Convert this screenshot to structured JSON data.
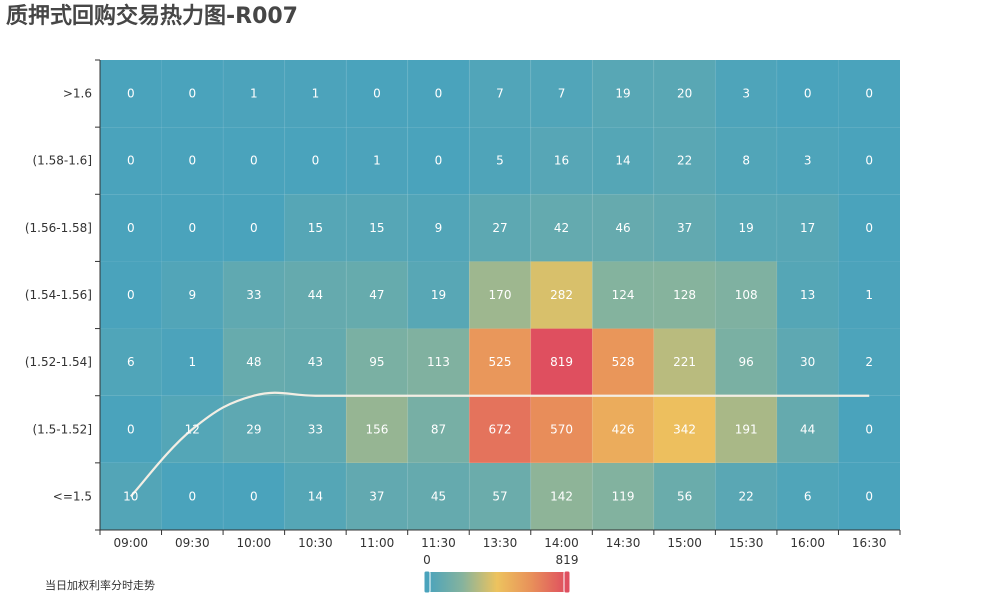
{
  "page": {
    "title": "质押式回购交易热力图-R007"
  },
  "legend": {
    "trend_label": "当日加权利率分时走势",
    "visual_map_min_label": "0",
    "visual_map_max_label": "819"
  },
  "chart_data": {
    "type": "heatmap",
    "title": "质押式回购交易热力图-R007",
    "x_categories": [
      "09:00",
      "09:30",
      "10:00",
      "10:30",
      "11:00",
      "11:30",
      "13:30",
      "14:00",
      "14:30",
      "15:00",
      "15:30",
      "16:00",
      "16:30"
    ],
    "y_categories": [
      "<=1.5",
      "(1.5-1.52]",
      "(1.52-1.54]",
      "(1.54-1.56]",
      "(1.56-1.58]",
      "(1.58-1.6]",
      ">1.6"
    ],
    "values": [
      [
        10,
        0,
        0,
        14,
        37,
        45,
        57,
        142,
        119,
        56,
        22,
        6,
        0
      ],
      [
        0,
        12,
        29,
        33,
        156,
        87,
        672,
        570,
        426,
        342,
        191,
        44,
        0
      ],
      [
        6,
        1,
        48,
        43,
        95,
        113,
        525,
        819,
        528,
        221,
        96,
        30,
        2
      ],
      [
        0,
        9,
        33,
        44,
        47,
        19,
        170,
        282,
        124,
        128,
        108,
        13,
        1
      ],
      [
        0,
        0,
        0,
        15,
        15,
        9,
        27,
        42,
        46,
        37,
        19,
        17,
        0
      ],
      [
        0,
        0,
        0,
        0,
        1,
        0,
        5,
        16,
        14,
        22,
        8,
        3,
        0
      ],
      [
        0,
        0,
        1,
        1,
        0,
        0,
        7,
        7,
        19,
        20,
        3,
        0,
        0
      ]
    ],
    "value_range": [
      0,
      819
    ],
    "color_scale": [
      "#4aa3bc",
      "#86b39d",
      "#edc35e",
      "#e8905a",
      "#df4f5f"
    ],
    "trend_line": {
      "name": "当日加权利率分时走势",
      "color": "#f3eee4",
      "points": [
        {
          "x": "09:00",
          "y": 1.5
        },
        {
          "x": "09:30",
          "y": 1.52
        },
        {
          "x": "10:00",
          "y": 1.53
        },
        {
          "x": "10:30",
          "y": 1.53
        },
        {
          "x": "11:00",
          "y": 1.53
        },
        {
          "x": "11:30",
          "y": 1.53
        },
        {
          "x": "13:30",
          "y": 1.53
        },
        {
          "x": "14:00",
          "y": 1.53
        },
        {
          "x": "14:30",
          "y": 1.53
        },
        {
          "x": "15:00",
          "y": 1.53
        },
        {
          "x": "15:30",
          "y": 1.53
        },
        {
          "x": "16:00",
          "y": 1.53
        },
        {
          "x": "16:30",
          "y": 1.53
        }
      ]
    },
    "legend_position": "bottom-left"
  }
}
